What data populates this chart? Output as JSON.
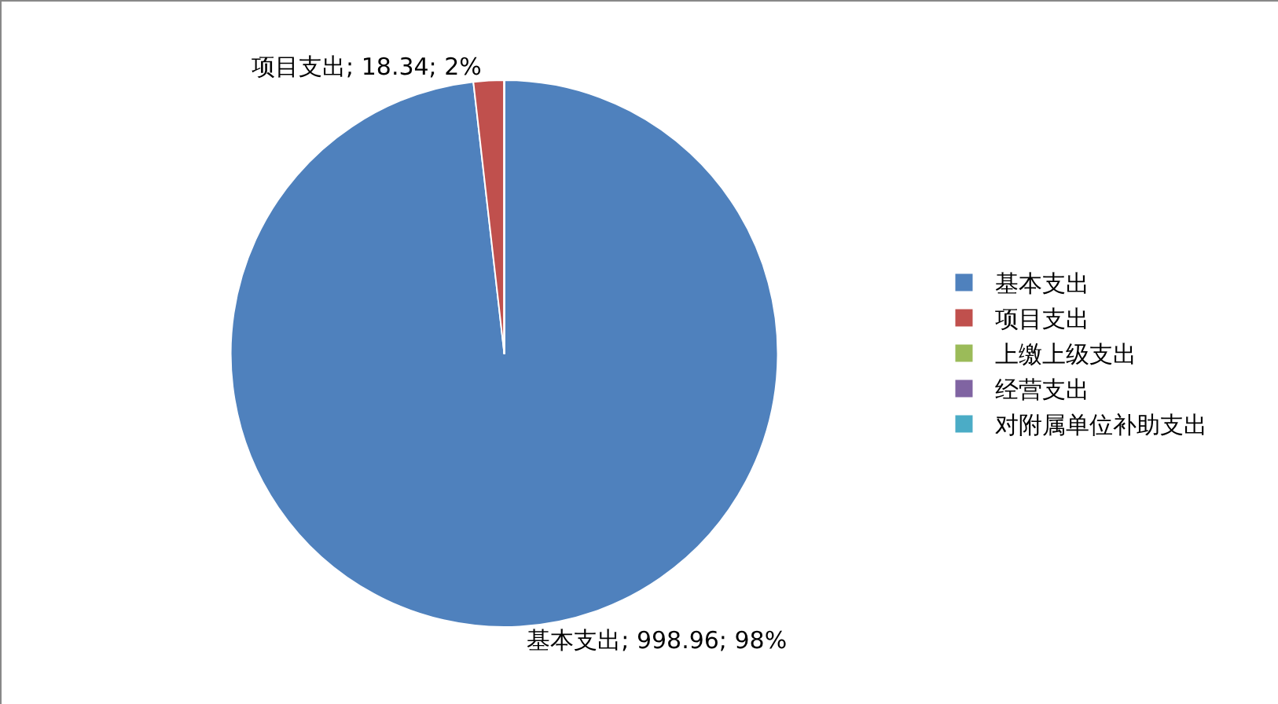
{
  "chart_data": {
    "type": "pie",
    "categories": [
      "基本支出",
      "项目支出",
      "上缴上级支出",
      "经营支出",
      "对附属单位补助支出"
    ],
    "values": [
      998.96,
      18.34,
      0,
      0,
      0
    ],
    "colors": [
      "#4f81bd",
      "#c0504d",
      "#9bbb59",
      "#8064a2",
      "#4bacc6"
    ],
    "value_labels": [
      "基本支出; 998.96; 98%",
      "项目支出; 18.34; 2%",
      null,
      null,
      null
    ],
    "legend": "right"
  }
}
